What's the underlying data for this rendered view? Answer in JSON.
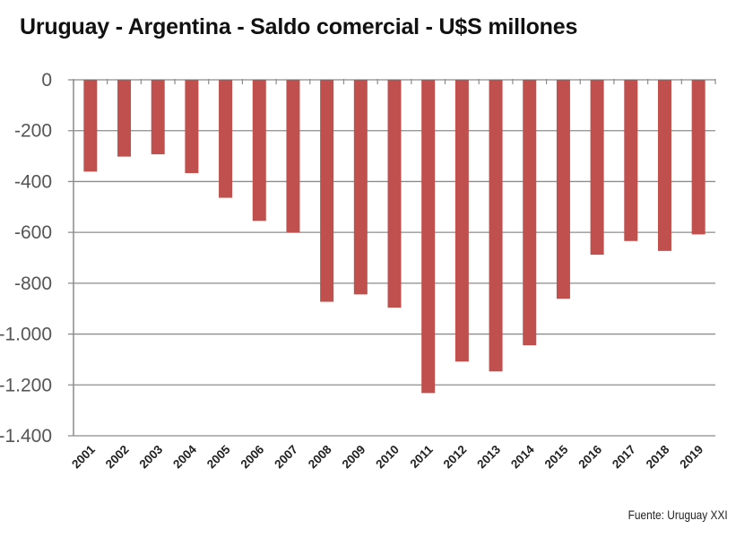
{
  "chart_data": {
    "type": "bar",
    "title": "Uruguay - Argentina - Saldo comercial - U$S millones",
    "source": "Fuente: Uruguay XXI",
    "categories": [
      "2001",
      "2002",
      "2003",
      "2004",
      "2005",
      "2006",
      "2007",
      "2008",
      "2009",
      "2010",
      "2011",
      "2012",
      "2013",
      "2014",
      "2015",
      "2016",
      "2017",
      "2018",
      "2019"
    ],
    "values": [
      -361,
      -302,
      -293,
      -367,
      -464,
      -555,
      -600,
      -873,
      -844,
      -896,
      -1232,
      -1108,
      -1147,
      -1044,
      -861,
      -688,
      -634,
      -673,
      -608
    ],
    "ylim": [
      -1400,
      0
    ],
    "yticks": [
      0,
      -200,
      -400,
      -600,
      -800,
      -1000,
      -1200,
      -1400
    ],
    "ytick_labels": [
      "0",
      "-200",
      "-400",
      "-600",
      "-800",
      "-1.000",
      "-1.200",
      "-1.400"
    ],
    "xlabel": "",
    "ylabel": "",
    "grid": true,
    "bar_color": "#c0504d"
  }
}
